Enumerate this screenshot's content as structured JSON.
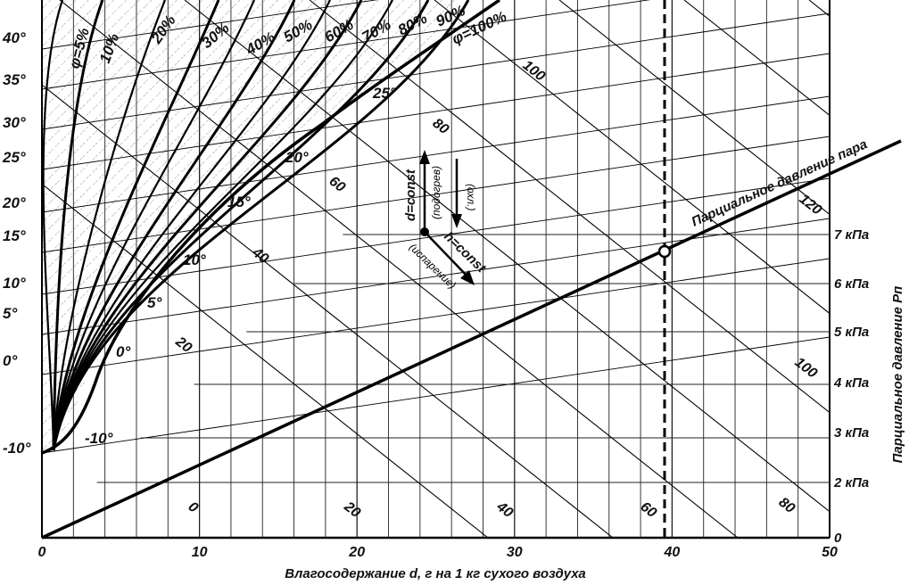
{
  "chart_data": {
    "type": "line",
    "title": "",
    "xlabel": "Влагосодержание d, г на 1 кг сухого воздуха",
    "ylabel_right": "Парциальное давление Рп",
    "xlim": [
      0,
      50
    ],
    "x_ticks": [
      "0",
      "10",
      "20",
      "30",
      "40",
      "50"
    ],
    "pressure_ticks": [
      "0",
      "2 кПа",
      "3 кПа",
      "4 кПа",
      "5 кПа",
      "6 кПа",
      "7 кПа"
    ],
    "temperature_ticks": [
      "-10°",
      "0°",
      "5°",
      "10°",
      "15°",
      "20°",
      "25°",
      "30°",
      "35°",
      "40°"
    ],
    "isotherm_labels": [
      "-10°",
      "0°",
      "5°",
      "10°",
      "15°",
      "20°",
      "25°"
    ],
    "rh_curves": [
      "φ=5%",
      "10%",
      "20%",
      "30%",
      "40%",
      "50%",
      "60%",
      "70%",
      "80%",
      "90%",
      "φ=100%"
    ],
    "enthalpy_labels": [
      "0",
      "20",
      "40",
      "60",
      "80",
      "100",
      "120"
    ],
    "enthalpy_labels_top": [
      "20",
      "40",
      "60",
      "80",
      "100"
    ],
    "enthalpy_labels_bottom": [
      "0",
      "20",
      "40",
      "60",
      "80"
    ],
    "enthalpy_labels_right": [
      "100",
      "120"
    ],
    "partial_pressure_line": {
      "label": "Парциальное давление пара",
      "points": [
        [
          0,
          0
        ],
        [
          39,
          6.3
        ]
      ]
    },
    "marker_d": 39,
    "process_labels": {
      "d_const": "d=const",
      "heating": "(подогрев)",
      "cooling": "(охл.)",
      "h_const": "h=const",
      "evaporation": "(испарение)"
    }
  }
}
